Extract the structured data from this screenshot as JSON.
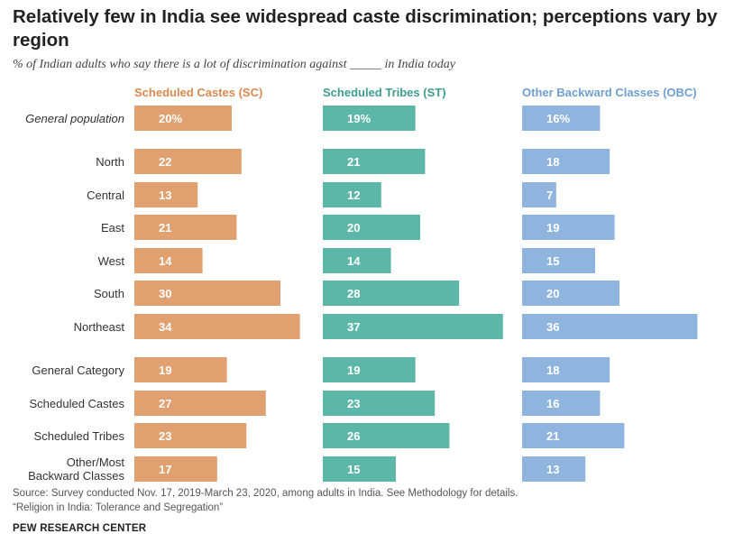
{
  "title": "Relatively few in India see widespread caste discrimination; perceptions vary by region",
  "subtitle": "% of Indian adults who say there is a lot of discrimination against _____ in India today",
  "source": "Source: Survey conducted Nov. 17, 2019-March 23, 2020, among adults in India. See Methodology for details.",
  "report": "“Religion in India: Tolerance and Segregation”",
  "logo": "PEW RESEARCH CENTER",
  "colors": {
    "sc": "#e0a06f",
    "st": "#5db7a8",
    "obc": "#8fb5df",
    "sc_header": "#d9894f",
    "st_header": "#3f9d8c",
    "obc_header": "#6f9fd1"
  },
  "chart_data": {
    "type": "bar",
    "orientation": "horizontal",
    "categories": [
      "General population",
      "North",
      "Central",
      "East",
      "West",
      "South",
      "Northeast",
      "General Category",
      "Scheduled Castes",
      "Scheduled Tribes",
      "Other/Most Backward Classes"
    ],
    "category_groups": [
      [
        "General population"
      ],
      [
        "North",
        "Central",
        "East",
        "West",
        "South",
        "Northeast"
      ],
      [
        "General Category",
        "Scheduled Castes",
        "Scheduled Tribes",
        "Other/Most Backward Classes"
      ]
    ],
    "series": [
      {
        "name": "Scheduled Castes (SC)",
        "values": [
          20,
          22,
          13,
          21,
          14,
          30,
          34,
          19,
          27,
          23,
          17
        ]
      },
      {
        "name": "Scheduled Tribes (ST)",
        "values": [
          19,
          21,
          12,
          20,
          14,
          28,
          37,
          19,
          23,
          26,
          15
        ]
      },
      {
        "name": "Other Backward Classes (OBC)",
        "values": [
          16,
          18,
          7,
          19,
          15,
          20,
          36,
          18,
          16,
          21,
          13
        ]
      }
    ],
    "first_row_value_suffix": "%",
    "layout": "small-multiples",
    "grid": false,
    "legend": "column headers"
  }
}
